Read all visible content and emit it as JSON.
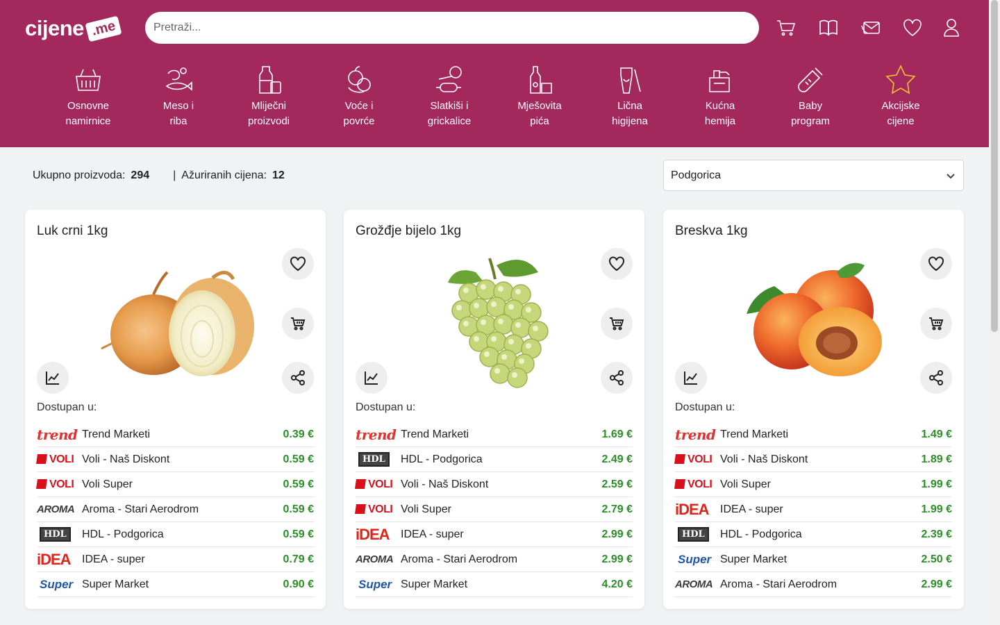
{
  "header": {
    "logo_text": "cijene",
    "logo_tag": ".me",
    "search_placeholder": "Pretraži...",
    "icons": [
      "cart-icon",
      "book-icon",
      "envelope-icon",
      "heart-icon",
      "user-icon"
    ]
  },
  "categories": [
    {
      "label": "Osnovne\nnamirnice",
      "icon": "basket-icon"
    },
    {
      "label": "Meso i\nriba",
      "icon": "meat-fish-icon"
    },
    {
      "label": "Mliječni\nproizvodi",
      "icon": "milk-icon"
    },
    {
      "label": "Voće i\npovrće",
      "icon": "fruit-vegetable-icon"
    },
    {
      "label": "Slatkiši i\ngrickalice",
      "icon": "candy-icon"
    },
    {
      "label": "Mješovita\npića",
      "icon": "drinks-icon"
    },
    {
      "label": "Lična\nhigijena",
      "icon": "hygiene-icon"
    },
    {
      "label": "Kućna\nhemija",
      "icon": "cleaning-icon"
    },
    {
      "label": "Baby\nprogram",
      "icon": "baby-bottle-icon"
    },
    {
      "label": "Akcijske\ncijene",
      "icon": "star-icon",
      "color": "#f3c234"
    }
  ],
  "summary": {
    "total_label": "Ukupno proizvoda:",
    "total_value": "294",
    "updated_label": "Ažuriranih cijena:",
    "updated_value": "12",
    "separator": "|"
  },
  "city_select": {
    "value": "Podgorica"
  },
  "available_label": "Dostupan u:",
  "products": [
    {
      "title": "Luk crni 1kg",
      "image": "onion",
      "stores": [
        {
          "logo": "trend",
          "name": "Trend Marketi",
          "price": "0.39 €"
        },
        {
          "logo": "voli",
          "name": "Voli - Naš Diskont",
          "price": "0.59 €"
        },
        {
          "logo": "voli",
          "name": "Voli Super",
          "price": "0.59 €"
        },
        {
          "logo": "aroma",
          "name": "Aroma - Stari Aerodrom",
          "price": "0.59 €"
        },
        {
          "logo": "hdl",
          "name": "HDL - Podgorica",
          "price": "0.59 €"
        },
        {
          "logo": "idea",
          "name": "IDEA - super",
          "price": "0.79 €"
        },
        {
          "logo": "super",
          "name": "Super Market",
          "price": "0.90 €"
        }
      ]
    },
    {
      "title": "Grožđje bijelo 1kg",
      "image": "grapes",
      "stores": [
        {
          "logo": "trend",
          "name": "Trend Marketi",
          "price": "1.69 €"
        },
        {
          "logo": "hdl",
          "name": "HDL - Podgorica",
          "price": "2.49 €"
        },
        {
          "logo": "voli",
          "name": "Voli - Naš Diskont",
          "price": "2.59 €"
        },
        {
          "logo": "voli",
          "name": "Voli Super",
          "price": "2.79 €"
        },
        {
          "logo": "idea",
          "name": "IDEA - super",
          "price": "2.99 €"
        },
        {
          "logo": "aroma",
          "name": "Aroma - Stari Aerodrom",
          "price": "2.99 €"
        },
        {
          "logo": "super",
          "name": "Super Market",
          "price": "4.20 €"
        }
      ]
    },
    {
      "title": "Breskva 1kg",
      "image": "peach",
      "stores": [
        {
          "logo": "trend",
          "name": "Trend Marketi",
          "price": "1.49 €"
        },
        {
          "logo": "voli",
          "name": "Voli - Naš Diskont",
          "price": "1.89 €"
        },
        {
          "logo": "voli",
          "name": "Voli Super",
          "price": "1.99 €"
        },
        {
          "logo": "idea",
          "name": "IDEA - super",
          "price": "1.99 €"
        },
        {
          "logo": "hdl",
          "name": "HDL - Podgorica",
          "price": "2.39 €"
        },
        {
          "logo": "super",
          "name": "Super Market",
          "price": "2.50 €"
        },
        {
          "logo": "aroma",
          "name": "Aroma - Stari Aerodrom",
          "price": "2.99 €"
        }
      ]
    }
  ],
  "store_logos": {
    "trend": "trend",
    "voli": "VOLI",
    "aroma": "AROMA",
    "hdl": "HDL",
    "idea": "iDEA",
    "super": "Super"
  },
  "colors": {
    "brand": "#a3285c",
    "price": "#2c8e27",
    "accent_star": "#f3c234"
  }
}
